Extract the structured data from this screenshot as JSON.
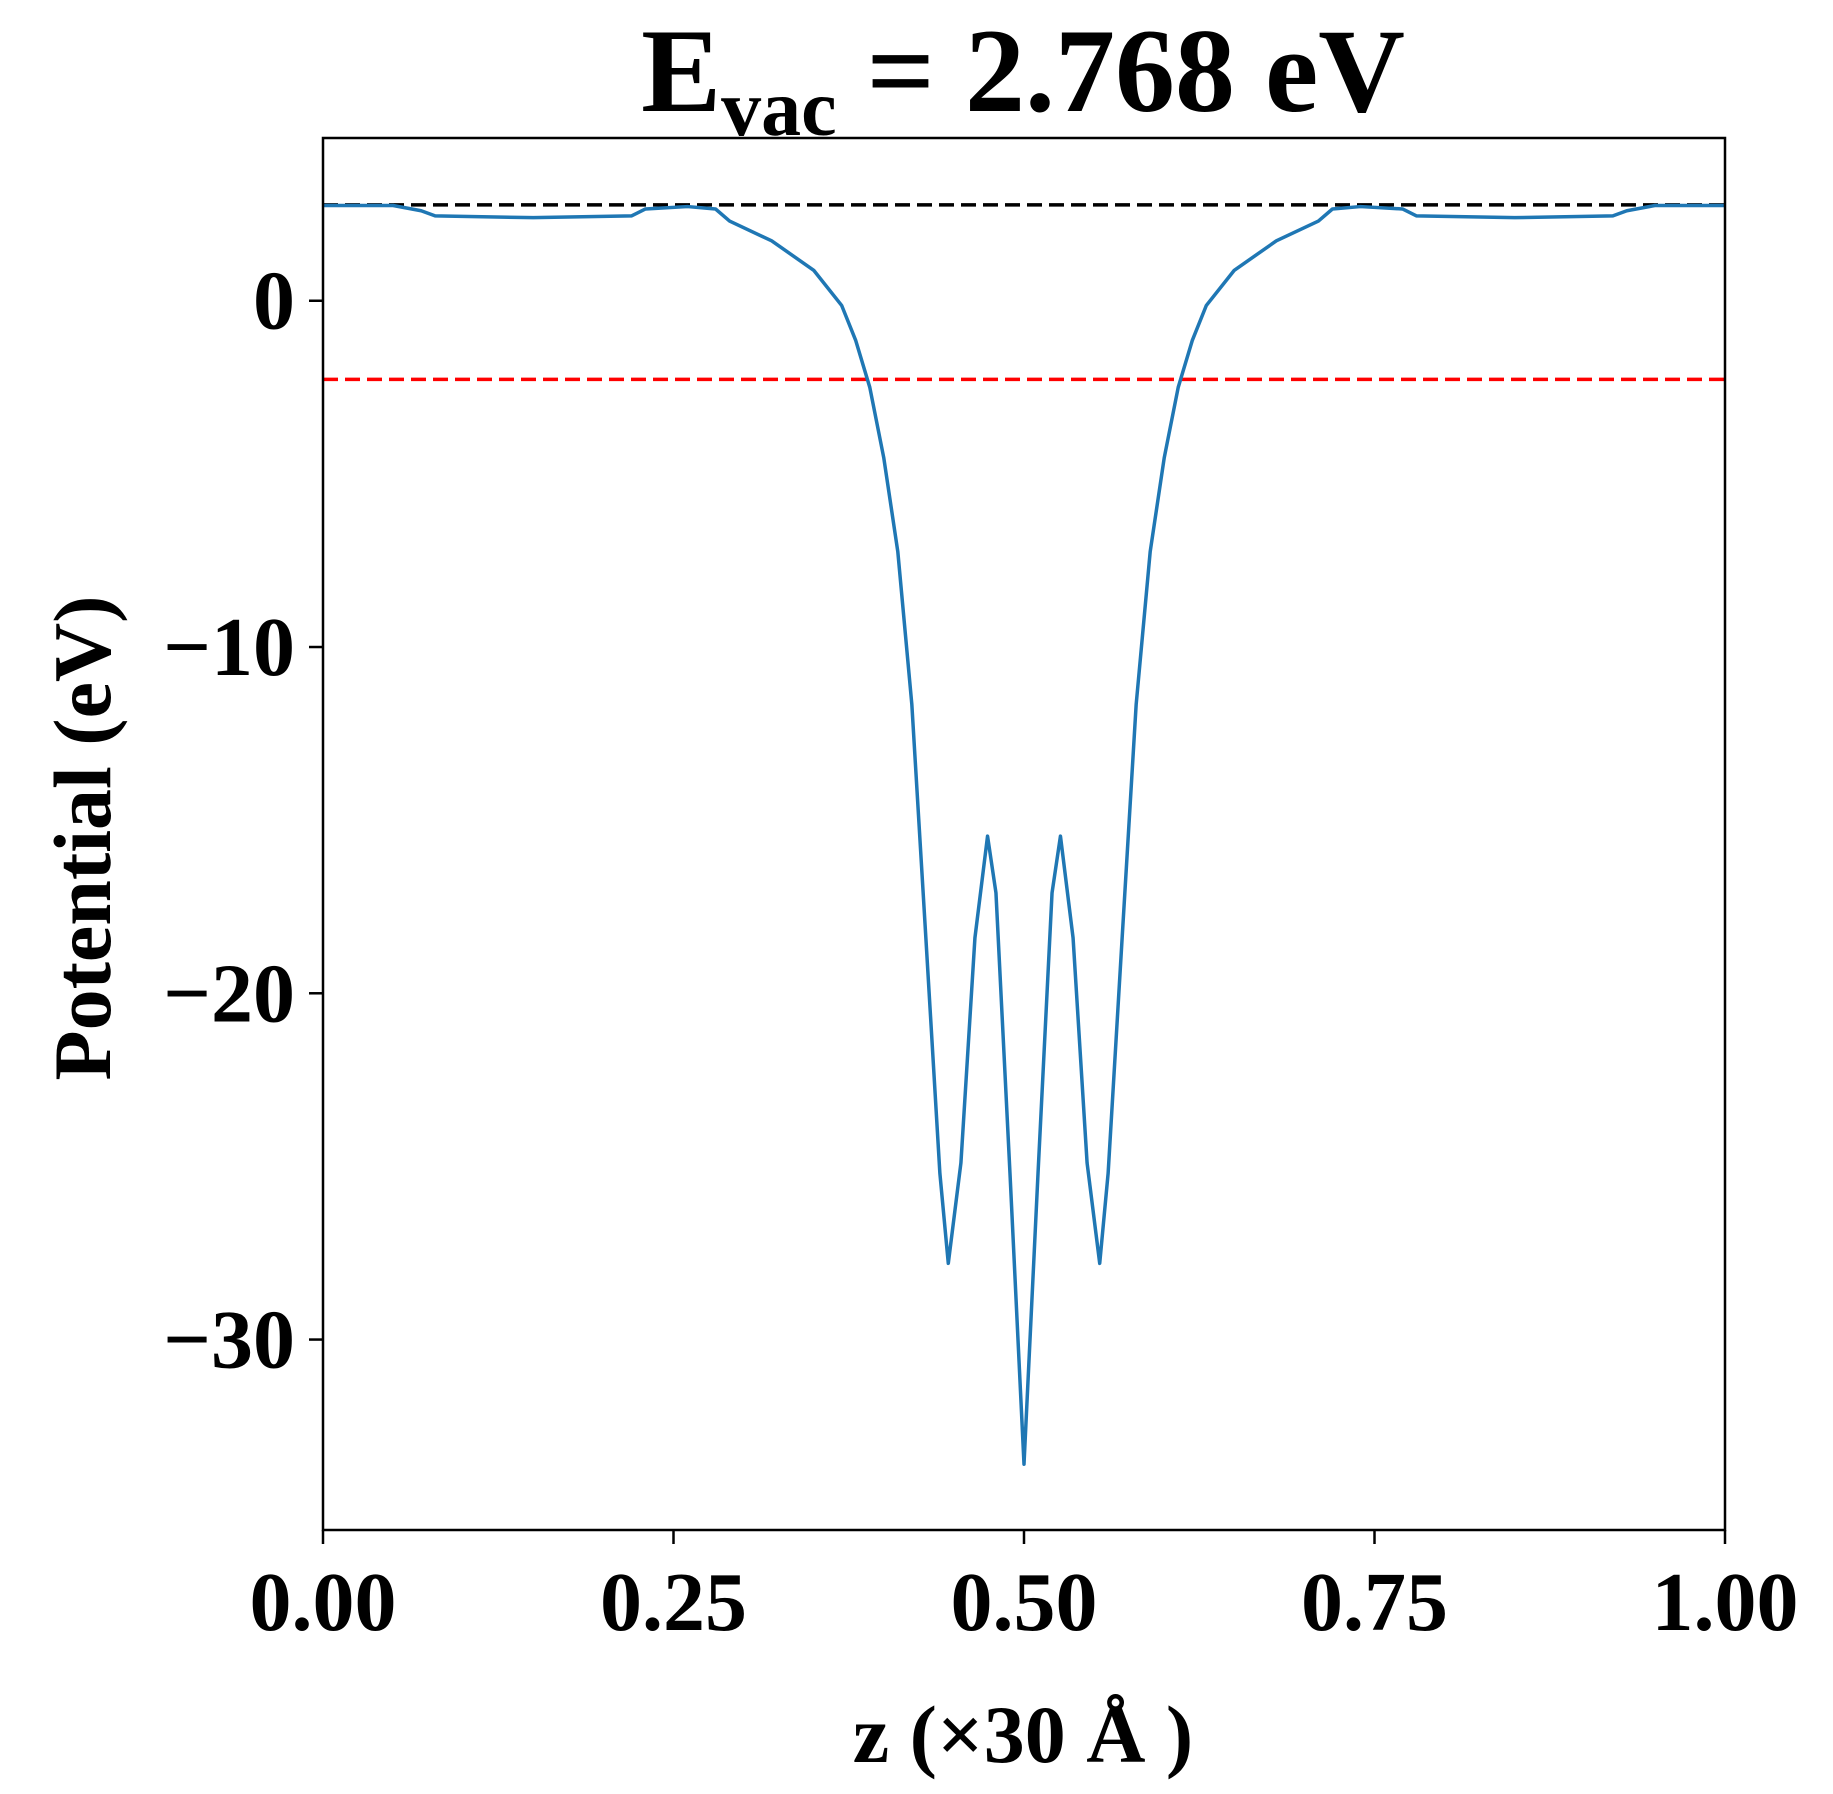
{
  "chart_data": {
    "type": "line",
    "title": {
      "main": "E",
      "sub": "vac",
      "rest": " = 2.768 eV"
    },
    "xlabel": "z (×30 Å )",
    "ylabel": "Potential (eV)",
    "xlim": [
      0,
      1
    ],
    "ylim": [
      -35.5,
      4.7
    ],
    "xticks": [
      {
        "value": 0,
        "label": "0.00"
      },
      {
        "value": 0.25,
        "label": "0.25"
      },
      {
        "value": 0.5,
        "label": "0.50"
      },
      {
        "value": 0.75,
        "label": "0.75"
      },
      {
        "value": 1,
        "label": "1.00"
      }
    ],
    "yticks": [
      {
        "value": 0,
        "label": "0"
      },
      {
        "value": -10,
        "label": "−10"
      },
      {
        "value": -20,
        "label": "−20"
      },
      {
        "value": -30,
        "label": "−30"
      }
    ],
    "hlines": [
      {
        "value": 2.768,
        "color": "#000000"
      },
      {
        "value": -2.27,
        "color": "#ff0000"
      }
    ],
    "series": [
      {
        "color": "#1f77b4",
        "x": [
          0,
          0.05,
          0.07,
          0.08,
          0.15,
          0.22,
          0.23,
          0.26,
          0.28,
          0.29,
          0.32,
          0.35,
          0.37,
          0.38,
          0.39,
          0.4,
          0.41,
          0.42,
          0.43,
          0.44,
          0.446,
          0.455,
          0.465,
          0.474,
          0.48,
          0.49,
          0.5,
          0.51,
          0.52,
          0.526,
          0.535,
          0.545,
          0.554,
          0.56,
          0.57,
          0.58,
          0.59,
          0.6,
          0.61,
          0.62,
          0.63,
          0.65,
          0.68,
          0.71,
          0.72,
          0.74,
          0.77,
          0.78,
          0.85,
          0.92,
          0.93,
          0.95,
          1.0
        ],
        "values": [
          2.75,
          2.75,
          2.6,
          2.45,
          2.4,
          2.45,
          2.65,
          2.72,
          2.65,
          2.3,
          1.73,
          0.88,
          -0.14,
          -1.15,
          -2.5,
          -4.54,
          -7.25,
          -11.66,
          -18.4,
          -25.2,
          -27.8,
          -24.9,
          -18.4,
          -15.46,
          -17.1,
          -25.2,
          -33.6,
          -25.2,
          -17.1,
          -15.46,
          -18.4,
          -24.9,
          -27.8,
          -25.2,
          -18.4,
          -11.66,
          -7.25,
          -4.54,
          -2.5,
          -1.15,
          -0.14,
          0.88,
          1.73,
          2.3,
          2.65,
          2.72,
          2.65,
          2.45,
          2.4,
          2.45,
          2.6,
          2.75,
          2.75
        ]
      }
    ]
  }
}
